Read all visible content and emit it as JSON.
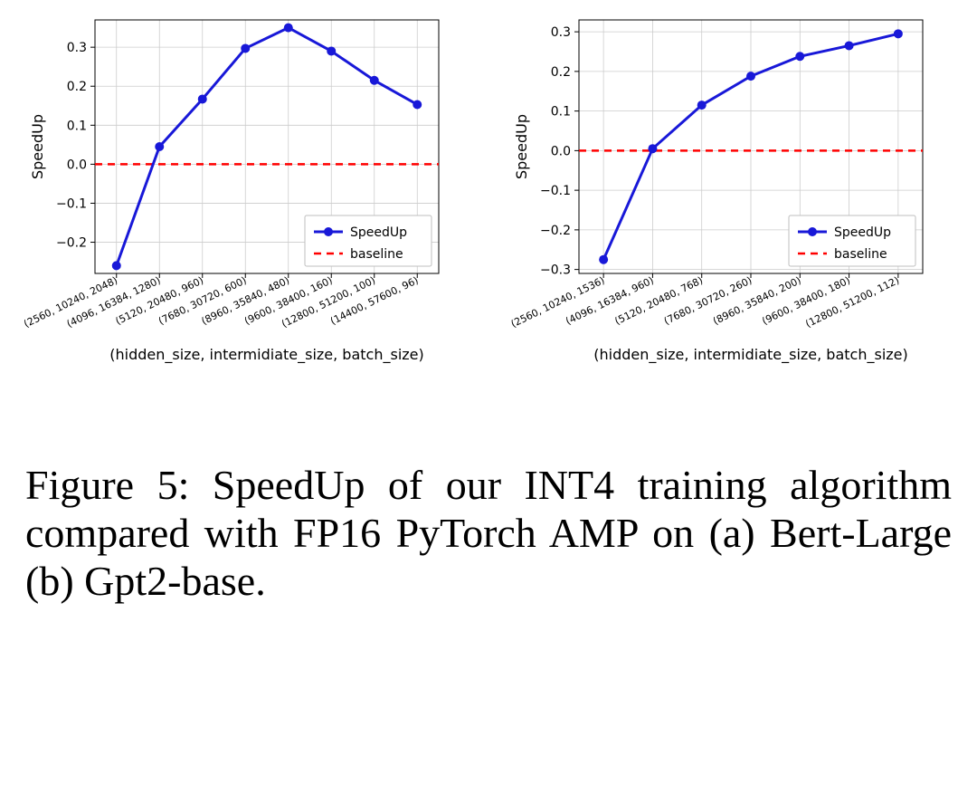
{
  "figure": {
    "caption": "Figure 5: SpeedUp of our INT4 training algorithm compared with FP16 PyTorch AMP on (a) Bert-Large (b) Gpt2-base.",
    "xlabel": "(hidden_size, intermidiate_size, batch_size)",
    "ylabel": "SpeedUp",
    "legend": {
      "speedup": "SpeedUp",
      "baseline": "baseline"
    },
    "colors": {
      "speedup_line": "#1818d8",
      "baseline_line": "#ff0000",
      "grid": "#cccccc",
      "axis": "#000000",
      "text": "#000000",
      "background": "#ffffff",
      "legend_border": "#bfbfbf"
    },
    "style": {
      "speedup_linewidth": 3,
      "speedup_marker": "circle",
      "speedup_marker_size": 5,
      "baseline_linewidth": 2.5,
      "baseline_dash": "8,6",
      "axis_fontsize": 16,
      "tick_fontsize": 14,
      "xtick_fontsize": 11,
      "legend_fontsize": 14
    },
    "charts": [
      {
        "id": "chart-a",
        "type": "line",
        "ylim": [
          -0.28,
          0.37
        ],
        "yticks": [
          -0.2,
          -0.1,
          0.0,
          0.1,
          0.2,
          0.3
        ],
        "ytick_labels": [
          "−0.2",
          "−0.1",
          "0.0",
          "0.1",
          "0.2",
          "0.3"
        ],
        "x_categories": [
          "(2560, 10240, 2048)",
          "(4096, 16384, 1280)",
          "(5120, 20480, 960)",
          "(7680, 30720, 600)",
          "(8960, 35840, 480)",
          "(9600, 38400, 160)",
          "(12800, 51200, 100)",
          "(14400, 57600, 96)"
        ],
        "values": [
          -0.26,
          0.045,
          0.167,
          0.297,
          0.35,
          0.29,
          0.215,
          0.153
        ],
        "baseline": 0.0
      },
      {
        "id": "chart-b",
        "type": "line",
        "ylim": [
          -0.31,
          0.33
        ],
        "yticks": [
          -0.3,
          -0.2,
          -0.1,
          0.0,
          0.1,
          0.2,
          0.3
        ],
        "ytick_labels": [
          "−0.3",
          "−0.2",
          "−0.1",
          "0.0",
          "0.1",
          "0.2",
          "0.3"
        ],
        "x_categories": [
          "(2560, 10240, 1536)",
          "(4096, 16384, 960)",
          "(5120, 20480, 768)",
          "(7680, 30720, 260)",
          "(8960, 35840, 200)",
          "(9600, 38400, 180)",
          "(12800, 51200, 112)"
        ],
        "values": [
          -0.275,
          0.005,
          0.115,
          0.188,
          0.238,
          0.265,
          0.295
        ],
        "baseline": 0.0
      }
    ]
  }
}
